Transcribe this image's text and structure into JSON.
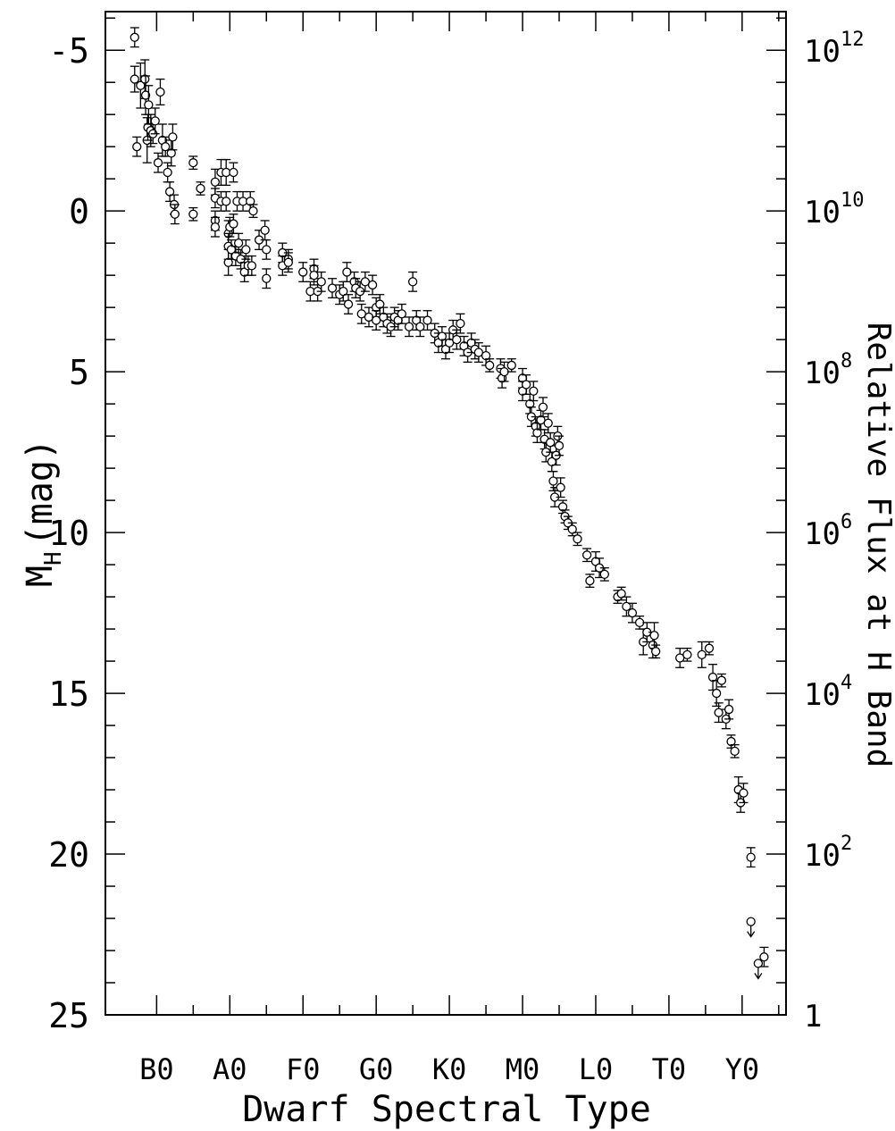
{
  "chart_data": {
    "type": "scatter",
    "title": "",
    "xlabel": "Dwarf Spectral Type",
    "ylabel": "M",
    "ylabel_subscript": "H",
    "ylabel_unit": "(mag)",
    "y2label": "Relative Flux at H Band",
    "xlim": [
      -0.7,
      8.6
    ],
    "ylim": [
      25,
      -6.2
    ],
    "y_inverted": true,
    "x_categories": [
      "B0",
      "A0",
      "F0",
      "G0",
      "K0",
      "M0",
      "L0",
      "T0",
      "Y0"
    ],
    "y_ticks": [
      "-5",
      "0",
      "5",
      "10",
      "15",
      "20",
      "25"
    ],
    "y_tick_values": [
      -5,
      0,
      5,
      10,
      15,
      20,
      25
    ],
    "y2_ticks": [
      {
        "value": -5,
        "base": "10",
        "exp": "12"
      },
      {
        "value": 0,
        "base": "10",
        "exp": "10"
      },
      {
        "value": 5,
        "base": "10",
        "exp": "8"
      },
      {
        "value": 10,
        "base": "10",
        "exp": "6"
      },
      {
        "value": 15,
        "base": "10",
        "exp": "4"
      },
      {
        "value": 20,
        "base": "10",
        "exp": "2"
      },
      {
        "value": 25,
        "base": "1",
        "exp": ""
      }
    ],
    "grid": false,
    "legend": "none",
    "marker": "open-circle-with-error-bars",
    "points": [
      {
        "x": -0.3,
        "y": -5.4,
        "e": 0.3
      },
      {
        "x": -0.3,
        "y": -4.1,
        "e": 0.4
      },
      {
        "x": -0.27,
        "y": -2.0,
        "e": 0.3
      },
      {
        "x": -0.22,
        "y": -3.9,
        "e": 0.7
      },
      {
        "x": -0.16,
        "y": -4.1,
        "e": 0.6
      },
      {
        "x": -0.15,
        "y": -3.6,
        "e": 0.6
      },
      {
        "x": -0.13,
        "y": -2.2,
        "e": 0.7
      },
      {
        "x": -0.12,
        "y": -2.6,
        "e": 0.4
      },
      {
        "x": -0.11,
        "y": -3.3,
        "e": 0.6
      },
      {
        "x": -0.08,
        "y": -2.5,
        "e": 0.5
      },
      {
        "x": -0.05,
        "y": -2.4,
        "e": 0.3
      },
      {
        "x": -0.02,
        "y": -2.8,
        "e": 0.4
      },
      {
        "x": 0.02,
        "y": -1.5,
        "e": 0.3
      },
      {
        "x": 0.05,
        "y": -3.7,
        "e": 0.4
      },
      {
        "x": 0.08,
        "y": -2.2,
        "e": 0.5
      },
      {
        "x": 0.12,
        "y": -2.0,
        "e": 0.3
      },
      {
        "x": 0.15,
        "y": -1.2,
        "e": 0.3
      },
      {
        "x": 0.18,
        "y": -0.6,
        "e": 0.3
      },
      {
        "x": 0.2,
        "y": -1.8,
        "e": 0.4
      },
      {
        "x": 0.22,
        "y": -2.3,
        "e": 0.4
      },
      {
        "x": 0.24,
        "y": -0.2,
        "e": 0.3
      },
      {
        "x": 0.25,
        "y": 0.1,
        "e": 0.3
      },
      {
        "x": 0.5,
        "y": -1.5,
        "e": 0.2
      },
      {
        "x": 0.5,
        "y": 0.1,
        "e": 0.2
      },
      {
        "x": 0.6,
        "y": -0.7,
        "e": 0.2
      },
      {
        "x": 0.8,
        "y": -0.9,
        "e": 0.4
      },
      {
        "x": 0.8,
        "y": -0.4,
        "e": 0.3
      },
      {
        "x": 0.8,
        "y": 0.3,
        "e": 0.3
      },
      {
        "x": 0.8,
        "y": 0.5,
        "e": 0.3
      },
      {
        "x": 0.88,
        "y": -1.2,
        "e": 0.4
      },
      {
        "x": 0.88,
        "y": -0.3,
        "e": 0.3
      },
      {
        "x": 0.95,
        "y": -1.2,
        "e": 0.4
      },
      {
        "x": 0.95,
        "y": -0.3,
        "e": 0.3
      },
      {
        "x": 0.98,
        "y": 0.7,
        "e": 0.4
      },
      {
        "x": 0.98,
        "y": 1.1,
        "e": 0.4
      },
      {
        "x": 0.98,
        "y": 1.6,
        "e": 0.4
      },
      {
        "x": 1.0,
        "y": 0.5,
        "e": 0.3
      },
      {
        "x": 1.02,
        "y": 1.2,
        "e": 0.3
      },
      {
        "x": 1.05,
        "y": 0.4,
        "e": 0.3
      },
      {
        "x": 1.05,
        "y": -1.2,
        "e": 0.3
      },
      {
        "x": 1.08,
        "y": 1.4,
        "e": 0.3
      },
      {
        "x": 1.1,
        "y": -0.3,
        "e": 0.3
      },
      {
        "x": 1.12,
        "y": 1.0,
        "e": 0.3
      },
      {
        "x": 1.15,
        "y": 1.5,
        "e": 0.3
      },
      {
        "x": 1.18,
        "y": -0.3,
        "e": 0.3
      },
      {
        "x": 1.2,
        "y": 1.9,
        "e": 0.3
      },
      {
        "x": 1.22,
        "y": 1.2,
        "e": 0.3
      },
      {
        "x": 1.25,
        "y": 1.7,
        "e": 0.3
      },
      {
        "x": 1.28,
        "y": -0.3,
        "e": 0.3
      },
      {
        "x": 1.3,
        "y": 1.7,
        "e": 0.3
      },
      {
        "x": 1.32,
        "y": 0.0,
        "e": 0.2
      },
      {
        "x": 1.4,
        "y": 0.9,
        "e": 0.3
      },
      {
        "x": 1.48,
        "y": 0.6,
        "e": 0.3
      },
      {
        "x": 1.5,
        "y": 1.2,
        "e": 0.3
      },
      {
        "x": 1.5,
        "y": 2.1,
        "e": 0.3
      },
      {
        "x": 1.72,
        "y": 1.3,
        "e": 0.3
      },
      {
        "x": 1.72,
        "y": 1.7,
        "e": 0.3
      },
      {
        "x": 1.8,
        "y": 1.5,
        "e": 0.3
      },
      {
        "x": 1.8,
        "y": 1.6,
        "e": 0.3
      },
      {
        "x": 2.0,
        "y": 1.9,
        "e": 0.3
      },
      {
        "x": 2.1,
        "y": 2.5,
        "e": 0.3
      },
      {
        "x": 2.15,
        "y": 1.8,
        "e": 0.3
      },
      {
        "x": 2.15,
        "y": 2.0,
        "e": 0.3
      },
      {
        "x": 2.2,
        "y": 2.5,
        "e": 0.3
      },
      {
        "x": 2.25,
        "y": 2.2,
        "e": 0.3
      },
      {
        "x": 2.4,
        "y": 2.4,
        "e": 0.3
      },
      {
        "x": 2.5,
        "y": 2.6,
        "e": 0.3
      },
      {
        "x": 2.55,
        "y": 2.5,
        "e": 0.3
      },
      {
        "x": 2.6,
        "y": 1.9,
        "e": 0.3
      },
      {
        "x": 2.62,
        "y": 2.9,
        "e": 0.3
      },
      {
        "x": 2.7,
        "y": 2.2,
        "e": 0.3
      },
      {
        "x": 2.72,
        "y": 2.4,
        "e": 0.3
      },
      {
        "x": 2.78,
        "y": 2.5,
        "e": 0.3
      },
      {
        "x": 2.8,
        "y": 3.2,
        "e": 0.3
      },
      {
        "x": 2.85,
        "y": 2.2,
        "e": 0.3
      },
      {
        "x": 2.9,
        "y": 3.3,
        "e": 0.3
      },
      {
        "x": 2.95,
        "y": 2.3,
        "e": 0.3
      },
      {
        "x": 3.0,
        "y": 3.0,
        "e": 0.3
      },
      {
        "x": 3.0,
        "y": 3.4,
        "e": 0.3
      },
      {
        "x": 3.05,
        "y": 2.9,
        "e": 0.3
      },
      {
        "x": 3.1,
        "y": 3.3,
        "e": 0.3
      },
      {
        "x": 3.15,
        "y": 3.5,
        "e": 0.3
      },
      {
        "x": 3.2,
        "y": 3.6,
        "e": 0.3
      },
      {
        "x": 3.25,
        "y": 3.3,
        "e": 0.3
      },
      {
        "x": 3.3,
        "y": 3.4,
        "e": 0.3
      },
      {
        "x": 3.35,
        "y": 3.2,
        "e": 0.3
      },
      {
        "x": 3.45,
        "y": 3.6,
        "e": 0.3
      },
      {
        "x": 3.5,
        "y": 2.2,
        "e": 0.3
      },
      {
        "x": 3.55,
        "y": 3.4,
        "e": 0.3
      },
      {
        "x": 3.6,
        "y": 3.6,
        "e": 0.3
      },
      {
        "x": 3.7,
        "y": 3.4,
        "e": 0.3
      },
      {
        "x": 3.8,
        "y": 3.8,
        "e": 0.3
      },
      {
        "x": 3.85,
        "y": 4.1,
        "e": 0.3
      },
      {
        "x": 3.9,
        "y": 3.9,
        "e": 0.3
      },
      {
        "x": 3.95,
        "y": 4.3,
        "e": 0.3
      },
      {
        "x": 4.0,
        "y": 4.1,
        "e": 0.3
      },
      {
        "x": 4.05,
        "y": 3.7,
        "e": 0.3
      },
      {
        "x": 4.1,
        "y": 4.0,
        "e": 0.3
      },
      {
        "x": 4.15,
        "y": 3.5,
        "e": 0.3
      },
      {
        "x": 4.2,
        "y": 4.2,
        "e": 0.3
      },
      {
        "x": 4.25,
        "y": 4.4,
        "e": 0.3
      },
      {
        "x": 4.3,
        "y": 4.1,
        "e": 0.3
      },
      {
        "x": 4.35,
        "y": 4.3,
        "e": 0.3
      },
      {
        "x": 4.4,
        "y": 4.4,
        "e": 0.3
      },
      {
        "x": 4.5,
        "y": 4.5,
        "e": 0.3
      },
      {
        "x": 4.55,
        "y": 4.8,
        "e": 0.2
      },
      {
        "x": 4.7,
        "y": 4.9,
        "e": 0.3
      },
      {
        "x": 4.72,
        "y": 5.2,
        "e": 0.3
      },
      {
        "x": 4.75,
        "y": 5.0,
        "e": 0.3
      },
      {
        "x": 4.85,
        "y": 4.8,
        "e": 0.2
      },
      {
        "x": 5.0,
        "y": 5.2,
        "e": 0.3
      },
      {
        "x": 5.0,
        "y": 5.6,
        "e": 0.3
      },
      {
        "x": 5.05,
        "y": 5.4,
        "e": 0.3
      },
      {
        "x": 5.1,
        "y": 6.0,
        "e": 0.3
      },
      {
        "x": 5.12,
        "y": 6.4,
        "e": 0.3
      },
      {
        "x": 5.15,
        "y": 5.6,
        "e": 0.3
      },
      {
        "x": 5.18,
        "y": 6.7,
        "e": 0.3
      },
      {
        "x": 5.2,
        "y": 6.9,
        "e": 0.3
      },
      {
        "x": 5.25,
        "y": 6.5,
        "e": 0.3
      },
      {
        "x": 5.28,
        "y": 6.1,
        "e": 0.3
      },
      {
        "x": 5.3,
        "y": 7.1,
        "e": 0.3
      },
      {
        "x": 5.32,
        "y": 7.5,
        "e": 0.3
      },
      {
        "x": 5.35,
        "y": 6.6,
        "e": 0.3
      },
      {
        "x": 5.38,
        "y": 7.2,
        "e": 0.3
      },
      {
        "x": 5.4,
        "y": 7.8,
        "e": 0.3
      },
      {
        "x": 5.42,
        "y": 8.4,
        "e": 0.3
      },
      {
        "x": 5.44,
        "y": 8.9,
        "e": 0.3
      },
      {
        "x": 5.46,
        "y": 7.6,
        "e": 0.3
      },
      {
        "x": 5.48,
        "y": 7.0,
        "e": 0.3
      },
      {
        "x": 5.5,
        "y": 7.3,
        "e": 0.3
      },
      {
        "x": 5.52,
        "y": 8.6,
        "e": 0.3
      },
      {
        "x": 5.55,
        "y": 9.2,
        "e": 0.2
      },
      {
        "x": 5.58,
        "y": 9.5,
        "e": 0.2
      },
      {
        "x": 5.62,
        "y": 9.7,
        "e": 0.2
      },
      {
        "x": 5.68,
        "y": 9.9,
        "e": 0.2
      },
      {
        "x": 5.75,
        "y": 10.2,
        "e": 0.2
      },
      {
        "x": 5.88,
        "y": 10.7,
        "e": 0.2
      },
      {
        "x": 5.92,
        "y": 11.5,
        "e": 0.2
      },
      {
        "x": 6.0,
        "y": 10.9,
        "e": 0.3
      },
      {
        "x": 6.05,
        "y": 11.1,
        "e": 0.3
      },
      {
        "x": 6.12,
        "y": 11.3,
        "e": 0.2
      },
      {
        "x": 6.3,
        "y": 12.0,
        "e": 0.2
      },
      {
        "x": 6.35,
        "y": 11.9,
        "e": 0.2
      },
      {
        "x": 6.42,
        "y": 12.3,
        "e": 0.3
      },
      {
        "x": 6.5,
        "y": 12.5,
        "e": 0.3
      },
      {
        "x": 6.6,
        "y": 12.8,
        "e": 0.2
      },
      {
        "x": 6.65,
        "y": 13.4,
        "e": 0.4
      },
      {
        "x": 6.7,
        "y": 13.1,
        "e": 0.3
      },
      {
        "x": 6.78,
        "y": 13.5,
        "e": 0.4
      },
      {
        "x": 6.8,
        "y": 13.2,
        "e": 0.4
      },
      {
        "x": 6.82,
        "y": 13.7,
        "e": 0.2
      },
      {
        "x": 7.15,
        "y": 13.9,
        "e": 0.3
      },
      {
        "x": 7.25,
        "y": 13.8,
        "e": 0.2
      },
      {
        "x": 7.45,
        "y": 13.8,
        "e": 0.4
      },
      {
        "x": 7.55,
        "y": 13.6,
        "e": 0.2
      },
      {
        "x": 7.6,
        "y": 14.5,
        "e": 0.4
      },
      {
        "x": 7.65,
        "y": 15.0,
        "e": 0.4
      },
      {
        "x": 7.68,
        "y": 15.6,
        "e": 0.3
      },
      {
        "x": 7.72,
        "y": 14.6,
        "e": 0.2
      },
      {
        "x": 7.78,
        "y": 15.8,
        "e": 0.3
      },
      {
        "x": 7.82,
        "y": 15.5,
        "e": 0.3
      },
      {
        "x": 7.85,
        "y": 16.5,
        "e": 0.2
      },
      {
        "x": 7.9,
        "y": 16.8,
        "e": 0.2
      },
      {
        "x": 7.95,
        "y": 18.0,
        "e": 0.4
      },
      {
        "x": 7.98,
        "y": 18.4,
        "e": 0.3
      },
      {
        "x": 8.02,
        "y": 18.1,
        "e": 0.3
      },
      {
        "x": 8.12,
        "y": 20.1,
        "e": 0.3
      },
      {
        "x": 8.12,
        "y": 22.1,
        "e": 0.0,
        "upper_limit": true
      },
      {
        "x": 8.22,
        "y": 23.4,
        "e": 0.0,
        "upper_limit": true
      },
      {
        "x": 8.3,
        "y": 23.2,
        "e": 0.3
      }
    ]
  }
}
